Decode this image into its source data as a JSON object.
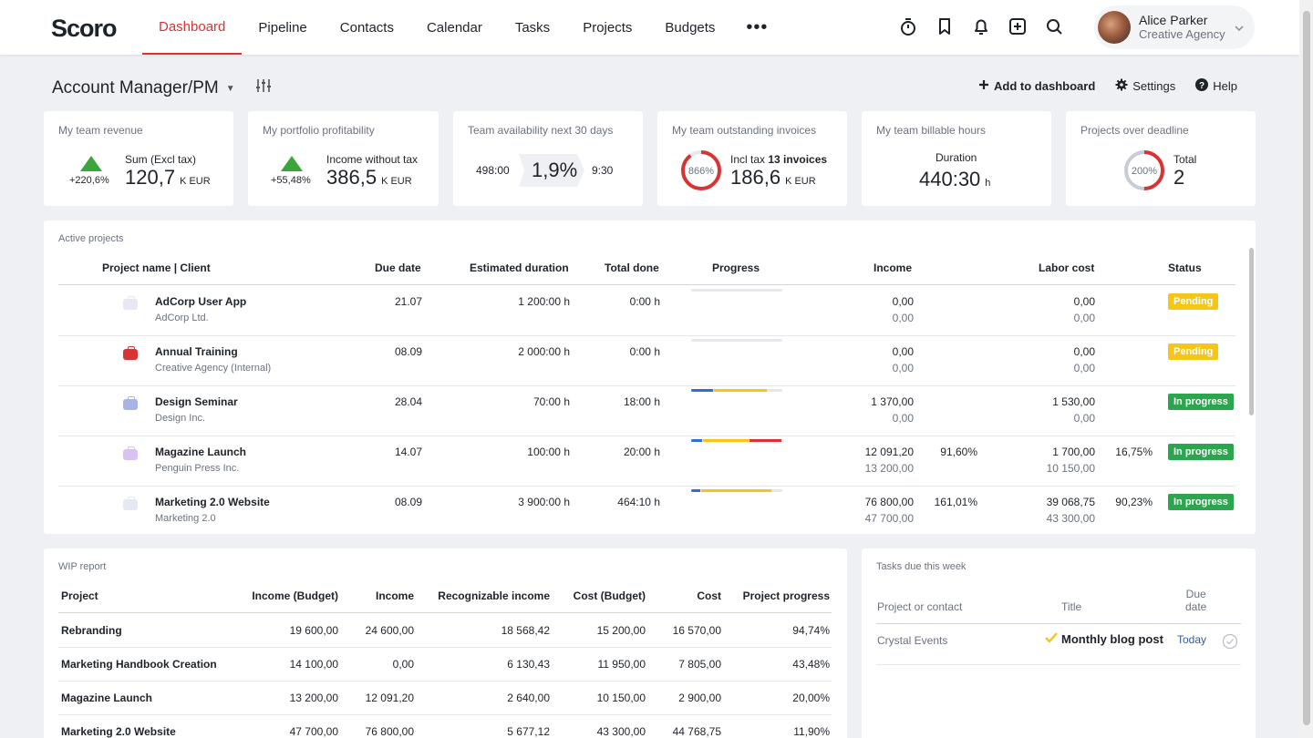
{
  "app": {
    "logo": "Scoro"
  },
  "nav": {
    "items": [
      "Dashboard",
      "Pipeline",
      "Contacts",
      "Calendar",
      "Tasks",
      "Projects",
      "Budgets"
    ],
    "active": "Dashboard",
    "more": "•••"
  },
  "user": {
    "name": "Alice Parker",
    "company": "Creative Agency"
  },
  "dashboard": {
    "title": "Account Manager/PM",
    "add_label": "Add to dashboard",
    "settings_label": "Settings",
    "help_label": "Help"
  },
  "kpis": {
    "revenue": {
      "title": "My team revenue",
      "change": "+220,6%",
      "label": "Sum (Excl tax)",
      "value": "120,7",
      "unit": "K  EUR"
    },
    "profitability": {
      "title": "My portfolio profitability",
      "change": "+55,48%",
      "label": "Income without tax",
      "value": "386,5",
      "unit": "K  EUR"
    },
    "availability": {
      "title": "Team availability next 30 days",
      "left": "498:00",
      "value": "1,9%",
      "right": "9:30"
    },
    "invoices": {
      "title": "My team outstanding invoices",
      "ring_label": "866%",
      "ring_fill": 0.9,
      "label_prefix": "Incl tax",
      "label_strong": "13 invoices",
      "value": "186,6",
      "unit": "K  EUR"
    },
    "billable": {
      "title": "My team billable hours",
      "label": "Duration",
      "value": "440:30",
      "unit": "h"
    },
    "deadline": {
      "title": "Projects over deadline",
      "ring_label": "200%",
      "ring_fill": 0.5,
      "label": "Total",
      "value": "2"
    }
  },
  "colors": {
    "accent": "#d83434",
    "green": "#2da44e",
    "yellow": "#f5c518",
    "blue": "#2f6fd1",
    "red": "#d83434"
  },
  "active_projects": {
    "title": "Active projects",
    "headers": {
      "name": "Project name | Client",
      "due": "Due date",
      "estimate": "Estimated duration",
      "done": "Total done",
      "progress": "Progress",
      "income": "Income",
      "labor": "Labor cost",
      "status": "Status"
    },
    "rows": [
      {
        "name": "AdCorp User App",
        "client": "AdCorp Ltd.",
        "due": "21.07",
        "estimate": "1 200:00 h",
        "done": "0:00 h",
        "progress": [],
        "income": "0,00",
        "income_sub": "0,00",
        "income_pct": "",
        "labor": "0,00",
        "labor_sub": "0,00",
        "labor_pct": "",
        "status": "Pending",
        "icon_color": "#e6e9f2"
      },
      {
        "name": "Annual Training",
        "client": "Creative Agency (Internal)",
        "due": "08.09",
        "estimate": "2 000:00 h",
        "done": "0:00 h",
        "progress": [],
        "income": "0,00",
        "income_sub": "0,00",
        "income_pct": "",
        "labor": "0,00",
        "labor_sub": "0,00",
        "labor_pct": "",
        "status": "Pending",
        "icon_color": "#d83434"
      },
      {
        "name": "Design Seminar",
        "client": "Design Inc.",
        "due": "28.04",
        "estimate": "70:00 h",
        "done": "18:00 h",
        "progress": [
          0.24,
          0.58
        ],
        "income": "1 370,00",
        "income_sub": "0,00",
        "income_pct": "",
        "labor": "1 530,00",
        "labor_sub": "0,00",
        "labor_pct": "",
        "status": "In progress",
        "icon_color": "#a8b4e8"
      },
      {
        "name": "Magazine Launch",
        "client": "Penguin Press Inc.",
        "due": "14.07",
        "estimate": "100:00 h",
        "done": "20:00 h",
        "progress": [
          0.12,
          0.52,
          0.36
        ],
        "income": "12 091,20",
        "income_sub": "13 200,00",
        "income_pct": "91,60%",
        "labor": "1 700,00",
        "labor_sub": "10 150,00",
        "labor_pct": "16,75%",
        "status": "In progress",
        "icon_color": "#d7c3f0"
      },
      {
        "name": "Marketing 2.0 Website",
        "client": "Marketing 2.0",
        "due": "08.09",
        "estimate": "3 900:00 h",
        "done": "464:10 h",
        "progress": [
          0.1,
          0.77
        ],
        "income": "76 800,00",
        "income_sub": "47 700,00",
        "income_pct": "161,01%",
        "labor": "39 068,75",
        "labor_sub": "43 300,00",
        "labor_pct": "90,23%",
        "status": "In progress",
        "icon_color": "#e6e9f2"
      }
    ]
  },
  "wip": {
    "title": "WIP report",
    "headers": [
      "Project",
      "Income (Budget)",
      "Income",
      "Recognizable income",
      "Cost (Budget)",
      "Cost",
      "Project progress"
    ],
    "rows": [
      [
        "Rebranding",
        "19 600,00",
        "24 600,00",
        "18 568,42",
        "15 200,00",
        "16 570,00",
        "94,74%"
      ],
      [
        "Marketing Handbook Creation",
        "14 100,00",
        "0,00",
        "6 130,43",
        "11 950,00",
        "7 805,00",
        "43,48%"
      ],
      [
        "Magazine Launch",
        "13 200,00",
        "12 091,20",
        "2 640,00",
        "10 150,00",
        "2 900,00",
        "20,00%"
      ],
      [
        "Marketing 2.0 Website",
        "47 700,00",
        "76 800,00",
        "5 677,12",
        "43 300,00",
        "44 768,75",
        "11,90%"
      ]
    ]
  },
  "tasks": {
    "title": "Tasks due this week",
    "headers": {
      "contact": "Project or contact",
      "title": "Title",
      "due_line1": "Due",
      "due_line2": "date"
    },
    "rows": [
      {
        "contact": "Crystal Events",
        "title": "Monthly blog post",
        "due": "Today"
      }
    ]
  }
}
